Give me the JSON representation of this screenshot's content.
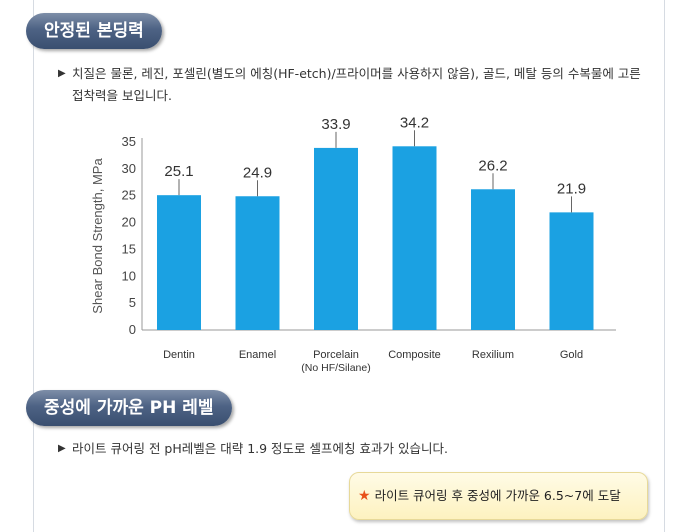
{
  "section1": {
    "title": "안정된 본딩력",
    "bullet": "치질은 물론, 레진, 포셀린(별도의 에칭(HF-etch)/프라이머를 사용하지 않음), 골드, 메탈 등의 수복물에 고른 접착력을 보입니다."
  },
  "section2": {
    "title": "중성에 가까운 PH 레벨",
    "bullet": "라이트 큐어링 전 pH레벨은 대략 1.9 정도로 셀프에칭 효과가 있습니다.",
    "callout": "라이트 큐어링 후 중성에 가까운 6.5~7에 도달"
  },
  "colors": {
    "bar": "#1ba1e2",
    "pill": "#4d6284",
    "callout_bg": "#fdf2c0",
    "star": "#e8501a"
  },
  "chart_data": {
    "type": "bar",
    "categories": [
      "Dentin",
      "Enamel",
      "Porcelain",
      "Composite",
      "Rexilium",
      "Gold"
    ],
    "category_sublabels": [
      "",
      "",
      "(No HF/Silane)",
      "",
      "",
      ""
    ],
    "values": [
      25.1,
      24.9,
      33.9,
      34.2,
      26.2,
      21.9
    ],
    "value_labels": [
      "25.1",
      "24.9",
      "33.9",
      "34.2",
      "26.2",
      "21.9"
    ],
    "error_bars": true,
    "ylabel": "Shear Bond Strength, MPa",
    "yticks": [
      "0",
      "5",
      "10",
      "15",
      "20",
      "25",
      "30",
      "35"
    ],
    "ylim": [
      0,
      35
    ],
    "grid": false,
    "legend": "none"
  }
}
